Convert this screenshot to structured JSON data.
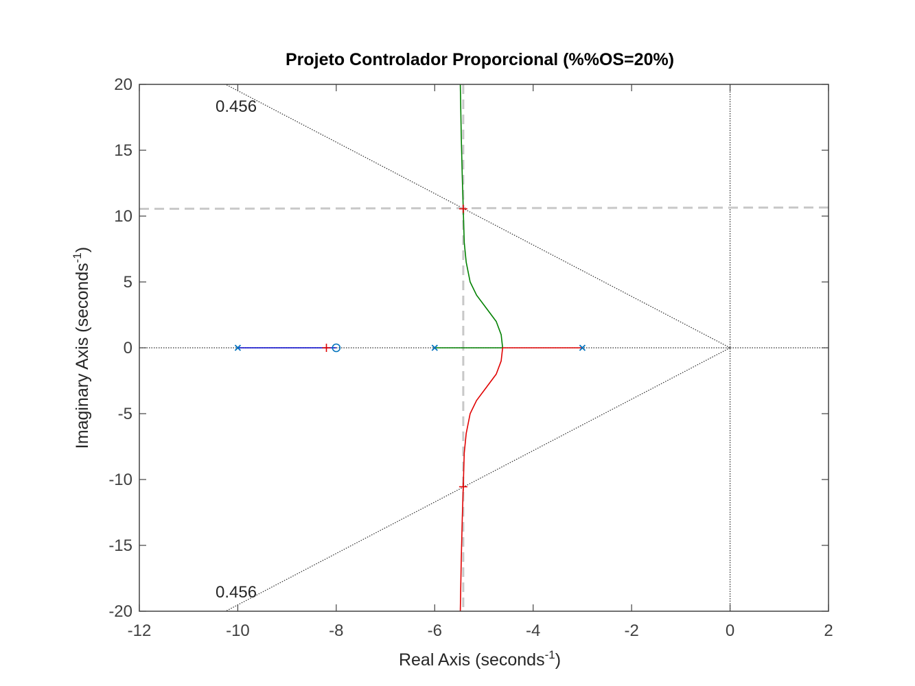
{
  "chart_data": {
    "type": "line",
    "plot_kind": "root-locus",
    "title": "Projeto Controlador Proporcional (%%OS=20%)",
    "xlabel": "Real Axis (seconds",
    "xlabel_sup": "-1",
    "xlabel_end": ")",
    "ylabel": "Imaginary Axis (seconds",
    "ylabel_sup": "-1",
    "ylabel_end": ")",
    "xlim": [
      -12,
      2
    ],
    "ylim": [
      -20,
      20
    ],
    "xticks": [
      -12,
      -10,
      -8,
      -6,
      -4,
      -2,
      0,
      2
    ],
    "yticks": [
      -20,
      -15,
      -10,
      -5,
      0,
      5,
      10,
      15,
      20
    ],
    "grid": false,
    "legend": "none",
    "poles": [
      -10,
      -6,
      -3
    ],
    "zeros": [
      -8
    ],
    "damping_ratio": 0.456,
    "damping_labels": [
      "0.456",
      "0.456"
    ],
    "design_point": {
      "real": -5.42,
      "imag": 10.55
    },
    "gain_markers": [
      {
        "real": -5.42,
        "imag": 10.55
      },
      {
        "real": -5.42,
        "imag": -10.55
      },
      {
        "real": -8.2,
        "imag": 0
      }
    ],
    "branches": [
      {
        "name": "",
        "color": "#0000cc",
        "points": [
          [
            -10,
            0
          ],
          [
            -8,
            0
          ]
        ]
      },
      {
        "name": "",
        "color": "#008000",
        "points": [
          [
            -6,
            0
          ],
          [
            -4.62,
            0
          ],
          [
            -4.65,
            1
          ],
          [
            -4.75,
            2
          ],
          [
            -4.95,
            3
          ],
          [
            -5.15,
            4
          ],
          [
            -5.28,
            5
          ],
          [
            -5.36,
            6.5
          ],
          [
            -5.4,
            8
          ],
          [
            -5.42,
            10.55
          ],
          [
            -5.44,
            13
          ],
          [
            -5.46,
            16
          ],
          [
            -5.48,
            20
          ]
        ]
      },
      {
        "name": "",
        "color": "#e00000",
        "points": [
          [
            -3,
            0
          ],
          [
            -4.62,
            0
          ],
          [
            -4.65,
            -1
          ],
          [
            -4.75,
            -2
          ],
          [
            -4.95,
            -3
          ],
          [
            -5.15,
            -4
          ],
          [
            -5.28,
            -5
          ],
          [
            -5.36,
            -6.5
          ],
          [
            -5.4,
            -8
          ],
          [
            -5.42,
            -10.55
          ],
          [
            -5.44,
            -13
          ],
          [
            -5.46,
            -16
          ],
          [
            -5.48,
            -20
          ]
        ]
      }
    ],
    "colors": {
      "axes": "#404040",
      "guide": "#c8c8c8",
      "zeta_line": "#262626",
      "pole_marker": "#0072bd",
      "zero_marker": "#0072bd",
      "gain_marker": "#e00000"
    }
  }
}
